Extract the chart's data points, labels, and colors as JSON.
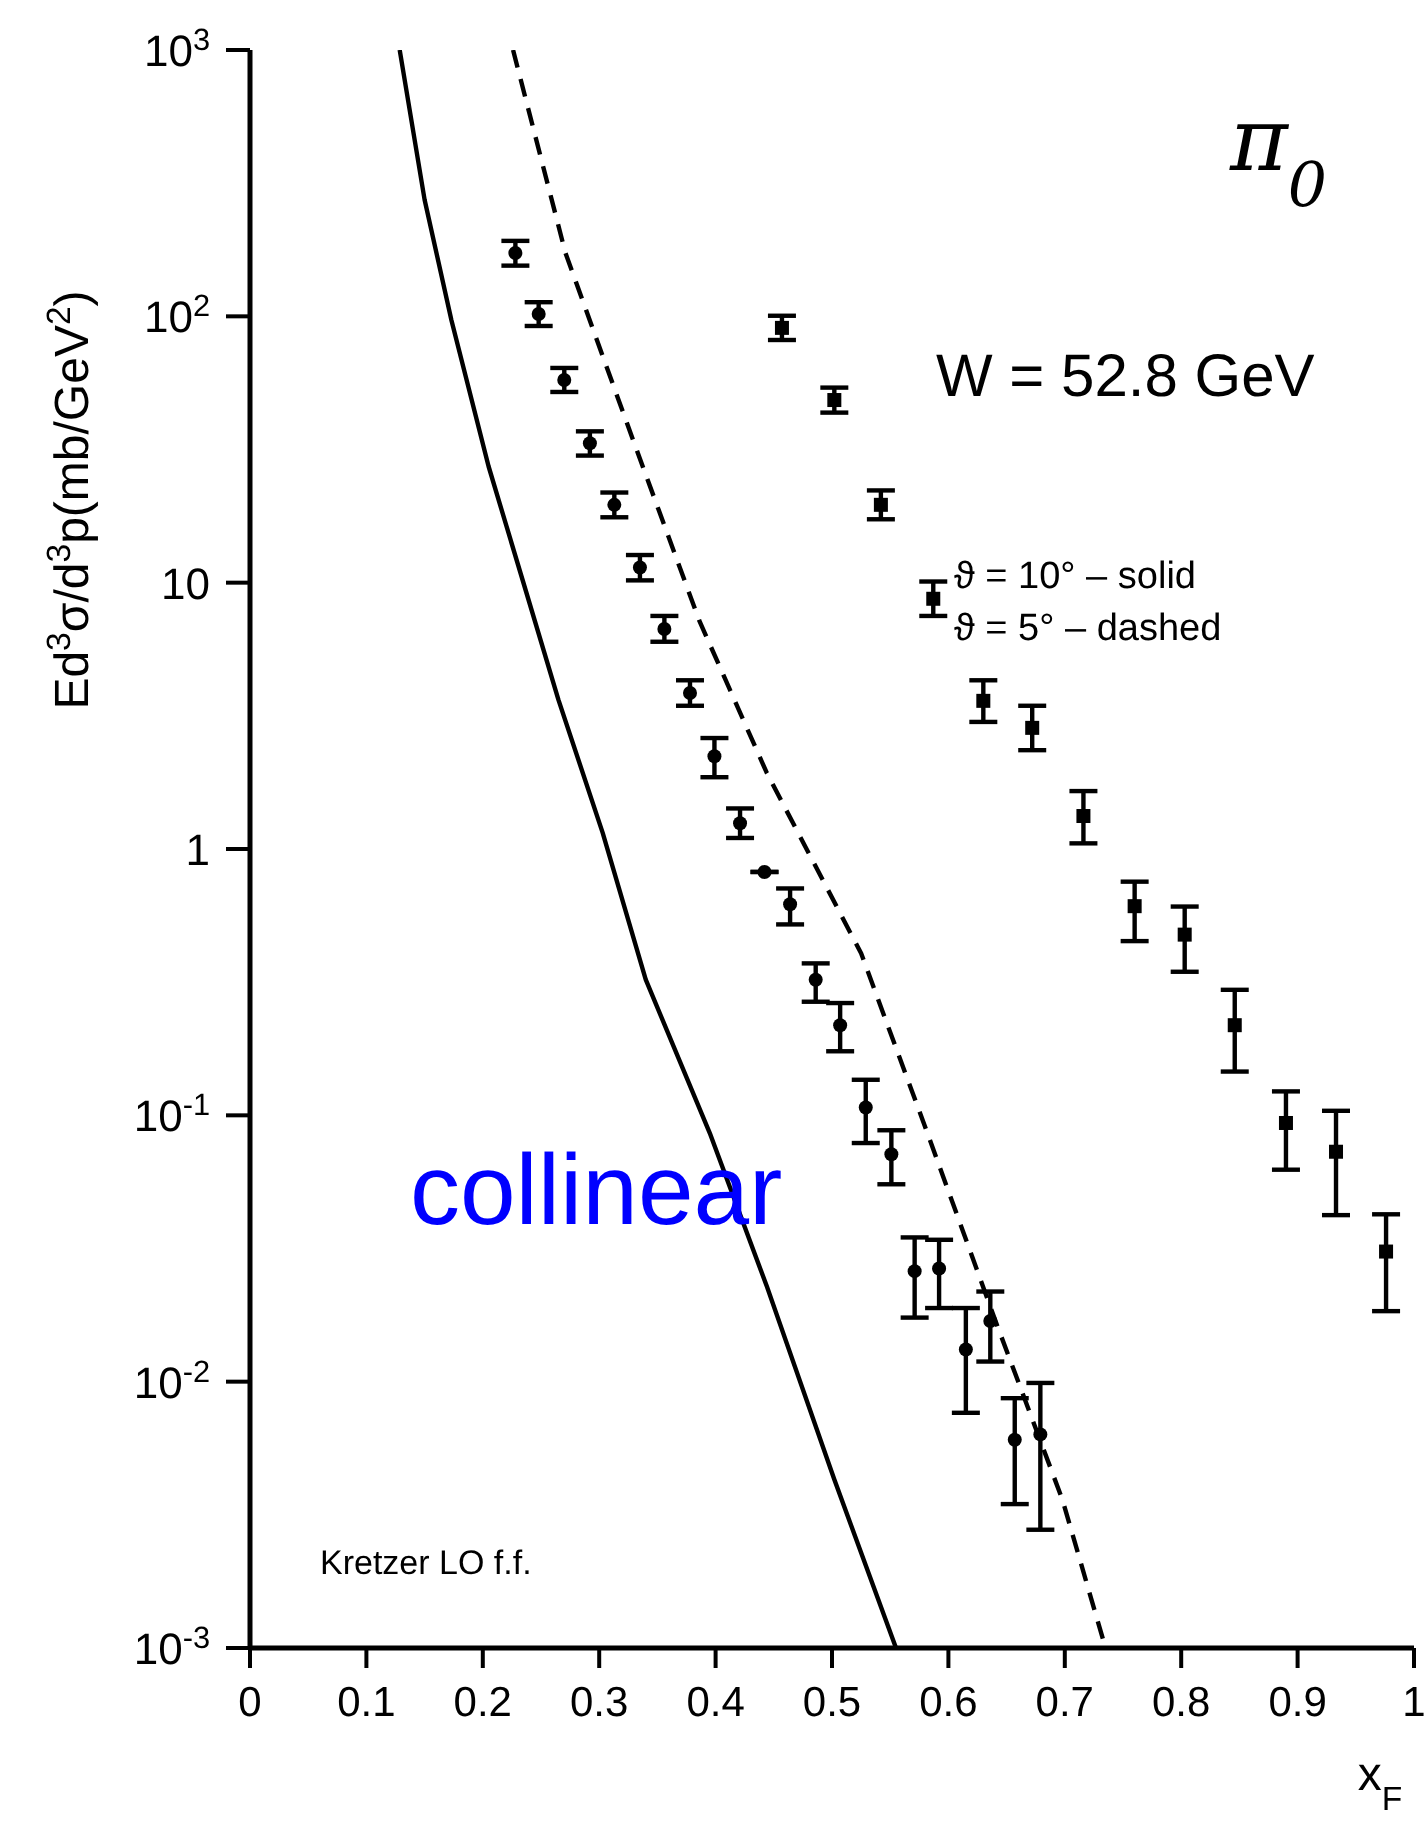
{
  "chart_data": {
    "type": "scatter",
    "ylabel": "Ed$^{3}$σ/d$^{3}$p(mb/GeV$^{2}$)",
    "xlabel": "x$_{F}$",
    "annotations": [
      "π$_{0}$",
      "W = 52.8 GeV",
      "ϑ = 10°  – solid",
      "ϑ = 5°  – dashed",
      "collinear",
      "Kretzer LO f.f."
    ],
    "log": "y",
    "xlim": [
      0,
      1
    ],
    "xticks": [
      0,
      0.1,
      0.2,
      0.3,
      0.4,
      0.5,
      0.6,
      0.7,
      0.8,
      0.9,
      1
    ],
    "ylim": [
      0.001,
      1000
    ],
    "yticks": [
      {
        "value": 0.001,
        "label": "10$^{-3}$"
      },
      {
        "value": 0.01,
        "label": "10$^{-2}$"
      },
      {
        "value": 0.1,
        "label": "10$^{-1}$"
      },
      1,
      10,
      {
        "value": 100,
        "label": "10$^{2}$"
      },
      {
        "value": 1000,
        "label": "10$^{3}$"
      }
    ],
    "series": [
      {
        "marker": "circle",
        "color": "#000000",
        "x": [
          0.228,
          0.248,
          0.27,
          0.292,
          0.313,
          0.335,
          0.356,
          0.378,
          0.399,
          0.421,
          0.442,
          0.464,
          0.486,
          0.507,
          0.529,
          0.551,
          0.571,
          0.592,
          0.615,
          0.636,
          0.657,
          0.679
        ],
        "values": [
          173,
          102,
          57.7,
          33.4,
          19.6,
          11.4,
          6.7,
          3.85,
          2.23,
          1.25,
          0.82,
          0.62,
          0.323,
          0.218,
          0.107,
          0.0714,
          0.026,
          0.0266,
          0.0132,
          0.0169,
          0.00605,
          0.00634
        ],
        "errors": [
          [
            155,
            192
          ],
          [
            92,
            113
          ],
          [
            52,
            64
          ],
          [
            30,
            37
          ],
          [
            17.6,
            21.8
          ],
          [
            10.2,
            12.7
          ],
          [
            6.0,
            7.5
          ],
          [
            3.45,
            4.3
          ],
          [
            1.86,
            2.61
          ],
          [
            1.1,
            1.42
          ],
          null,
          [
            0.521,
            0.711
          ],
          [
            0.267,
            0.372
          ],
          [
            0.174,
            0.264
          ],
          [
            0.0787,
            0.136
          ],
          [
            0.0551,
            0.0879
          ],
          [
            0.0174,
            0.0348
          ],
          [
            0.0189,
            0.0341
          ],
          [
            0.00764,
            0.0189
          ],
          [
            0.0119,
            0.0218
          ],
          [
            0.00347,
            0.00867
          ],
          [
            0.00278,
            0.00989
          ]
        ]
      },
      {
        "marker": "square",
        "color": "#000000",
        "x": [
          0.457,
          0.502,
          0.542,
          0.587,
          0.63,
          0.672,
          0.716,
          0.76,
          0.803,
          0.846,
          0.89,
          0.933,
          0.976
        ],
        "values": [
          90.5,
          48.5,
          19.6,
          8.7,
          3.6,
          2.85,
          1.33,
          0.61,
          0.477,
          0.218,
          0.0936,
          0.073,
          0.0308
        ],
        "errors": [
          [
            81.5,
            100.5
          ],
          [
            43.5,
            54
          ],
          [
            17.3,
            22.2
          ],
          [
            7.5,
            10.1
          ],
          [
            3.0,
            4.3
          ],
          [
            2.35,
            3.45
          ],
          [
            1.05,
            1.65
          ],
          [
            0.451,
            0.754
          ],
          [
            0.346,
            0.608
          ],
          [
            0.146,
            0.296
          ],
          [
            0.0625,
            0.123
          ],
          [
            0.0422,
            0.104
          ],
          [
            0.0184,
            0.0425
          ]
        ]
      },
      {
        "type": "line",
        "line_style": "solid",
        "marker": "none",
        "color": "#000000",
        "x": [
          0.1286,
          0.15,
          0.173,
          0.205,
          0.234,
          0.265,
          0.303,
          0.34,
          0.395,
          0.444,
          0.502,
          0.555
        ],
        "values": [
          1000,
          274,
          96.9,
          27.3,
          10.3,
          3.63,
          1.15,
          0.323,
          0.0858,
          0.0228,
          0.00429,
          0.001
        ]
      },
      {
        "type": "line",
        "line_style": "dashed",
        "marker": "none",
        "color": "#000000",
        "x": [
          0.226,
          0.271,
          0.329,
          0.386,
          0.444,
          0.525,
          0.582,
          0.64,
          0.698,
          0.735
        ],
        "values": [
          1000,
          173,
          34.4,
          7.2,
          1.93,
          0.406,
          0.0857,
          0.0171,
          0.0036,
          0.001
        ]
      }
    ]
  }
}
